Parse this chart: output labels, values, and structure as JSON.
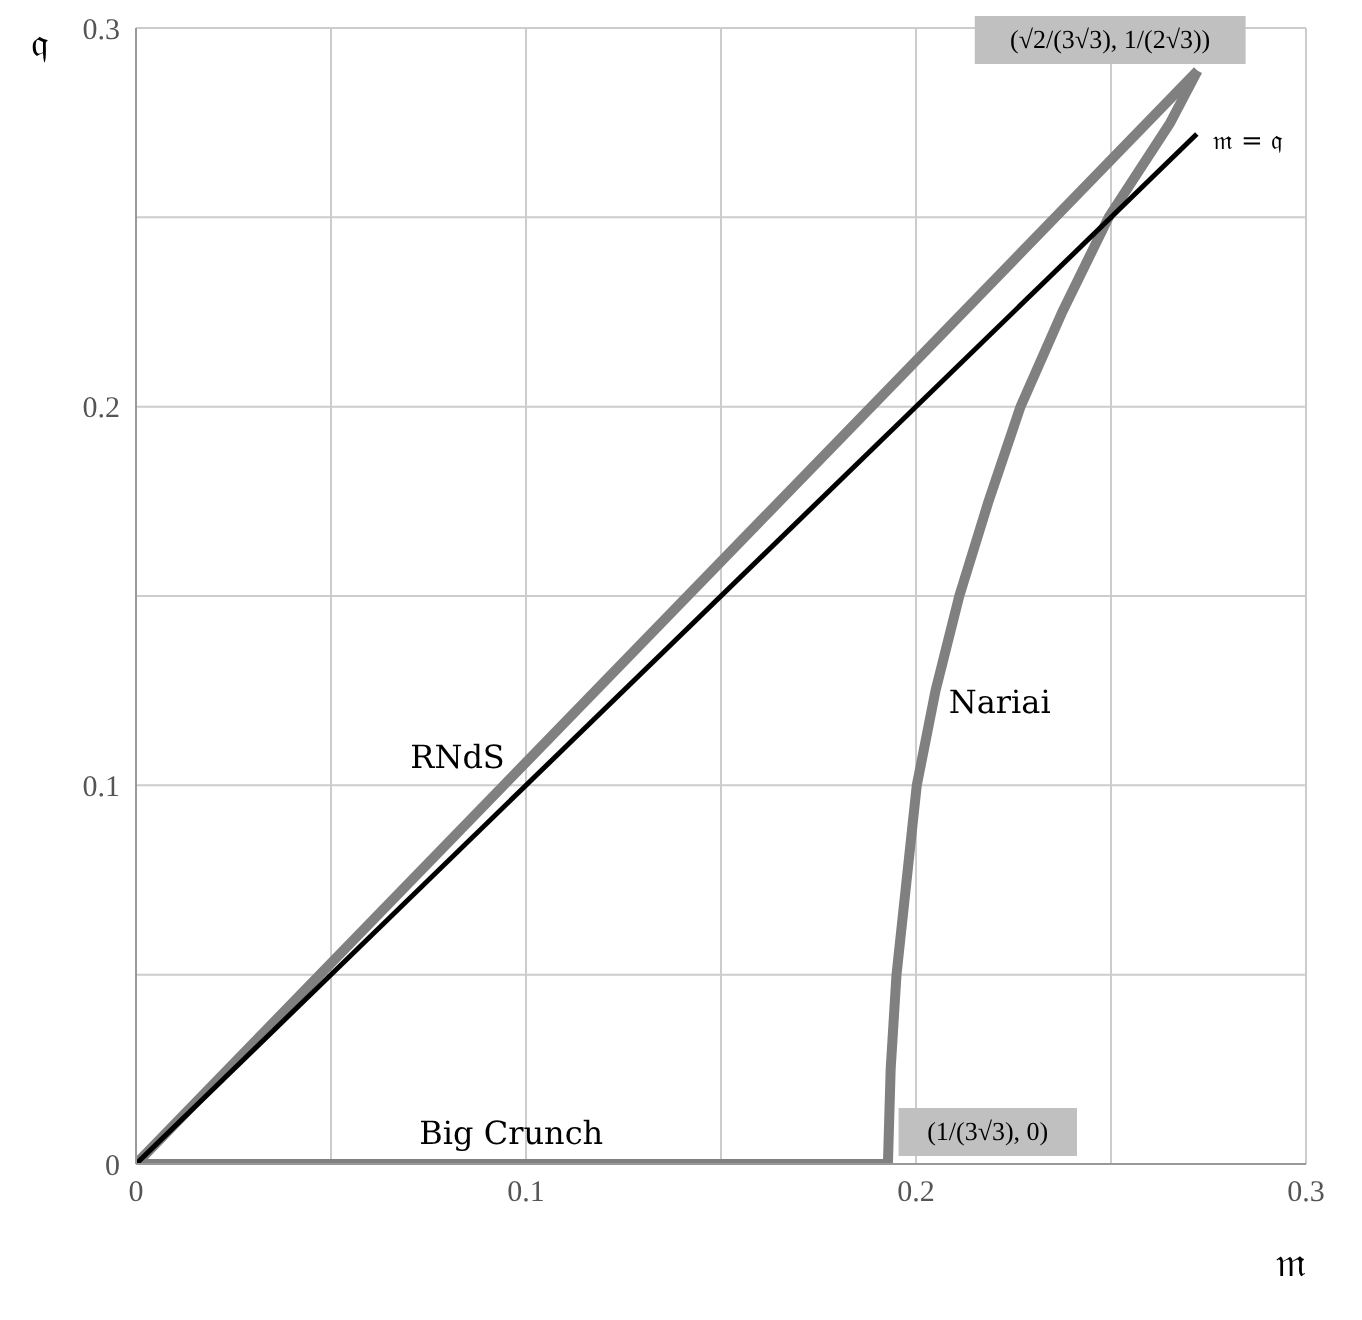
{
  "chart_data": {
    "type": "line",
    "xlabel": "𝔪",
    "ylabel": "𝔮",
    "xlim": [
      0,
      0.3
    ],
    "ylim": [
      0,
      0.3
    ],
    "xticks": [
      0,
      {
        "value": 0.05,
        "label": null
      },
      0.1,
      {
        "value": 0.15,
        "label": null
      },
      0.2,
      {
        "value": 0.25,
        "label": null
      },
      0.3
    ],
    "yticks": [
      0,
      {
        "value": 0.05,
        "label": null
      },
      0.1,
      {
        "value": 0.15,
        "label": null
      },
      0.2,
      {
        "value": 0.25,
        "label": null
      },
      0.3
    ],
    "grid": true,
    "legend": false,
    "marker": "none",
    "series": [
      {
        "name": "RNdS",
        "color": "#808080",
        "x": [
          0,
          0.2722
        ],
        "values": [
          0,
          0.2887
        ]
      },
      {
        "name": "Nariai",
        "color": "#808080",
        "x": [
          0.1928,
          0.1935,
          0.195,
          0.2002,
          0.205,
          0.2111,
          0.2186,
          0.2268,
          0.2375,
          0.2494,
          0.2652,
          0.2722
        ],
        "values": [
          0,
          0.025,
          0.05,
          0.1,
          0.125,
          0.15,
          0.175,
          0.2,
          0.225,
          0.25,
          0.275,
          0.2887
        ]
      },
      {
        "name": "Big Crunch",
        "color": "#808080",
        "x": [
          0,
          0.19245
        ],
        "values": [
          0,
          0
        ]
      },
      {
        "name": "𝔪 = 𝔮",
        "color": "#000000",
        "x": [
          0,
          0.272
        ],
        "values": [
          0,
          0.272
        ]
      }
    ],
    "annotations": [
      {
        "text": "(1/(3√3), 0)",
        "x": 0.19245,
        "y": 0
      },
      {
        "text": "(√2/(3√3), 1/(2√3))",
        "x": 0.2722,
        "y": 0.2887
      }
    ]
  }
}
